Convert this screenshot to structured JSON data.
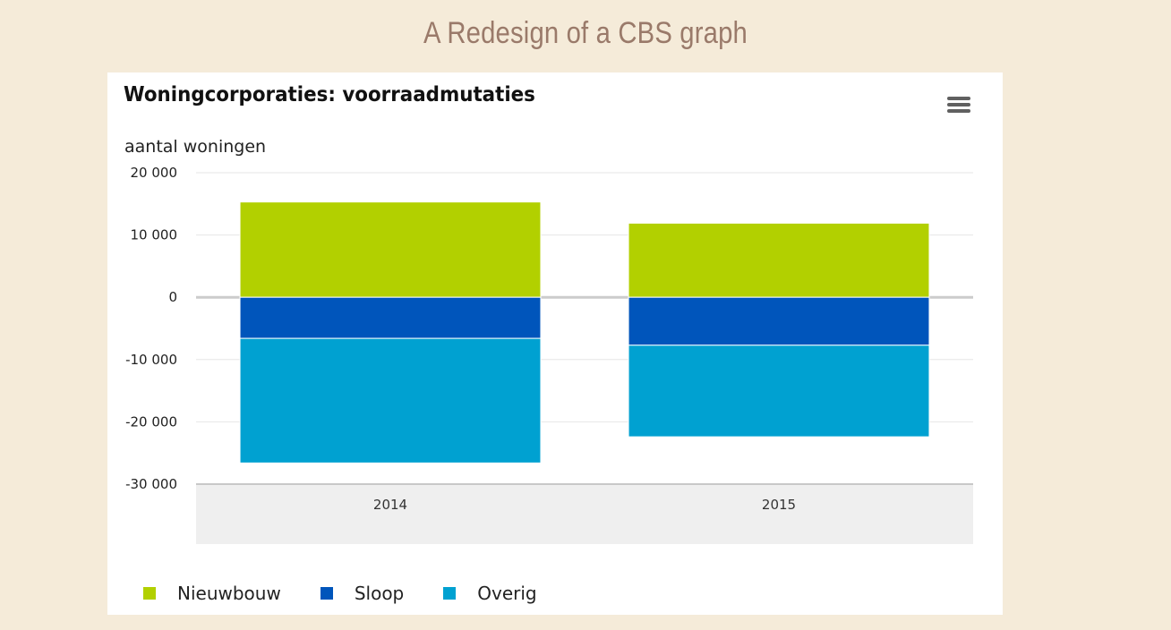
{
  "page": {
    "title": "A Redesign of a CBS graph"
  },
  "chart_data": {
    "type": "bar",
    "stacked": true,
    "title": "Woningcorporaties: voorraadmutaties",
    "ylabel": "aantal woningen",
    "xlabel": "",
    "categories": [
      "2014",
      "2015"
    ],
    "ylim": [
      -30000,
      20000
    ],
    "yticks": [
      20000,
      10000,
      0,
      -10000,
      -20000,
      -30000
    ],
    "ytick_labels": [
      "20 000",
      "10 000",
      "0",
      "-10 000",
      "-20 000",
      "-30 000"
    ],
    "grid": true,
    "legend_position": "bottom-left",
    "series": [
      {
        "name": "Nieuwbouw",
        "color": "#b2d000",
        "values": [
          15300,
          11900
        ]
      },
      {
        "name": "Sloop",
        "color": "#0055bb",
        "values": [
          -6600,
          -7700
        ]
      },
      {
        "name": "Overig",
        "color": "#00a1d1",
        "values": [
          -20000,
          -14700
        ]
      }
    ]
  },
  "menu": {
    "icon": "hamburger-menu-icon"
  }
}
